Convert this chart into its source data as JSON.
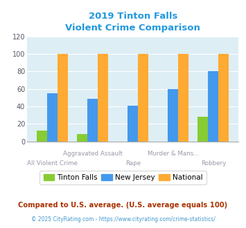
{
  "title_line1": "2019 Tinton Falls",
  "title_line2": "Violent Crime Comparison",
  "categories_top": [
    "Aggravated Assault",
    "Murder & Mans..."
  ],
  "categories_bot": [
    "All Violent Crime",
    "Rape",
    "Robbery"
  ],
  "tinton_falls": [
    12,
    8,
    0,
    0,
    28
  ],
  "new_jersey": [
    55,
    49,
    41,
    60,
    80
  ],
  "national": [
    100,
    100,
    100,
    100,
    100
  ],
  "colors": {
    "tinton_falls": "#88cc33",
    "new_jersey": "#4499ee",
    "national": "#ffaa33"
  },
  "ylim": [
    0,
    120
  ],
  "yticks": [
    0,
    20,
    40,
    60,
    80,
    100,
    120
  ],
  "title_color": "#2299dd",
  "background_color": "#ddeef5",
  "legend_labels": [
    "Tinton Falls",
    "New Jersey",
    "National"
  ],
  "footnote1": "Compared to U.S. average. (U.S. average equals 100)",
  "footnote2": "© 2025 CityRating.com - https://www.cityrating.com/crime-statistics/",
  "footnote1_color": "#aa3300",
  "footnote2_color": "#4499cc",
  "label_color": "#9999aa"
}
